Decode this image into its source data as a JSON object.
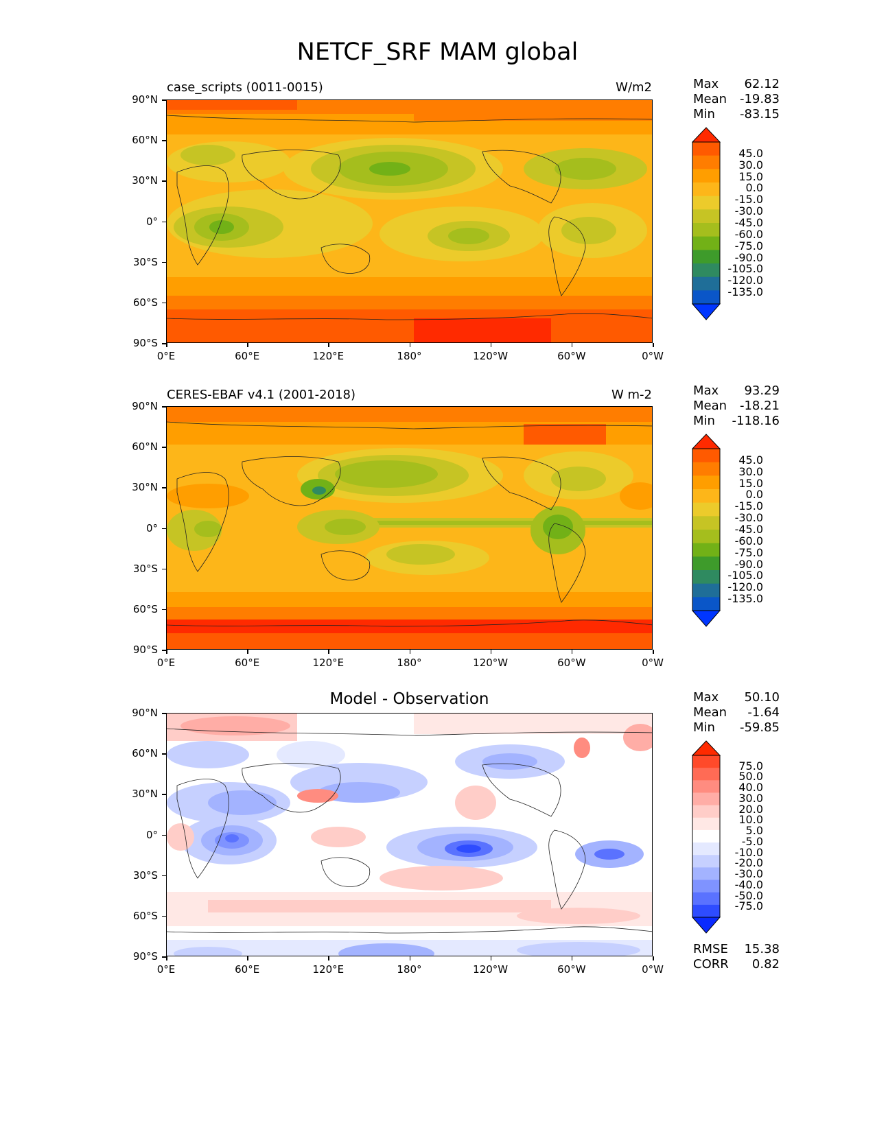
{
  "figure": {
    "title": "NETCF_SRF MAM global"
  },
  "axes": {
    "x_ticks": [
      "0°E",
      "60°E",
      "120°E",
      "180°",
      "120°W",
      "60°W",
      "0°W"
    ],
    "y_ticks": [
      "90°N",
      "60°N",
      "30°N",
      "0°",
      "30°S",
      "60°S",
      "90°S"
    ]
  },
  "panels": [
    {
      "left_title": "case_scripts (0011-0015)",
      "right_title": "W/m2",
      "center_title": "",
      "stats": [
        {
          "label": "Max",
          "value": "62.12"
        },
        {
          "label": "Mean",
          "value": "-19.83"
        },
        {
          "label": "Min",
          "value": "-83.15"
        }
      ],
      "colorbar_labels": [
        "45.0",
        "30.0",
        "15.0",
        "0.0",
        "-15.0",
        "-30.0",
        "-45.0",
        "-60.0",
        "-75.0",
        "-90.0",
        "-105.0",
        "-120.0",
        "-135.0"
      ],
      "colorbar_colors": [
        "#ff2a00",
        "#ff5a00",
        "#ff7d00",
        "#ff9e00",
        "#fdb619",
        "#eccb2b",
        "#c6c424",
        "#a5be1d",
        "#72b117",
        "#3e9b2b",
        "#2f8a60",
        "#1f6e98",
        "#0a56c8",
        "#0036ff"
      ],
      "footer": []
    },
    {
      "left_title": "CERES-EBAF v4.1 (2001-2018)",
      "right_title": "W m-2",
      "center_title": "",
      "stats": [
        {
          "label": "Max",
          "value": "93.29"
        },
        {
          "label": "Mean",
          "value": "-18.21"
        },
        {
          "label": "Min",
          "value": "-118.16"
        }
      ],
      "colorbar_labels": [
        "45.0",
        "30.0",
        "15.0",
        "0.0",
        "-15.0",
        "-30.0",
        "-45.0",
        "-60.0",
        "-75.0",
        "-90.0",
        "-105.0",
        "-120.0",
        "-135.0"
      ],
      "colorbar_colors": [
        "#ff2a00",
        "#ff5a00",
        "#ff7d00",
        "#ff9e00",
        "#fdb619",
        "#eccb2b",
        "#c6c424",
        "#a5be1d",
        "#72b117",
        "#3e9b2b",
        "#2f8a60",
        "#1f6e98",
        "#0a56c8",
        "#0036ff"
      ],
      "footer": []
    },
    {
      "left_title": "",
      "right_title": "",
      "center_title": "Model - Observation",
      "stats": [
        {
          "label": "Max",
          "value": "50.10"
        },
        {
          "label": "Mean",
          "value": "-1.64"
        },
        {
          "label": "Min",
          "value": "-59.85"
        }
      ],
      "colorbar_labels": [
        "75.0",
        "50.0",
        "40.0",
        "30.0",
        "20.0",
        "10.0",
        "5.0",
        "-5.0",
        "-10.0",
        "-20.0",
        "-30.0",
        "-40.0",
        "-50.0",
        "-75.0"
      ],
      "colorbar_colors": [
        "#ff2a00",
        "#ff4a2a",
        "#ff6b55",
        "#ff8c80",
        "#ffada6",
        "#ffcdc8",
        "#ffe8e5",
        "#ffffff",
        "#e4e9ff",
        "#c6d0ff",
        "#a3b3ff",
        "#7f93ff",
        "#5a72ff",
        "#2e4cff",
        "#0a2aff"
      ],
      "footer": [
        {
          "label": "RMSE",
          "value": "15.38"
        },
        {
          "label": "CORR",
          "value": "0.82"
        }
      ]
    }
  ]
}
